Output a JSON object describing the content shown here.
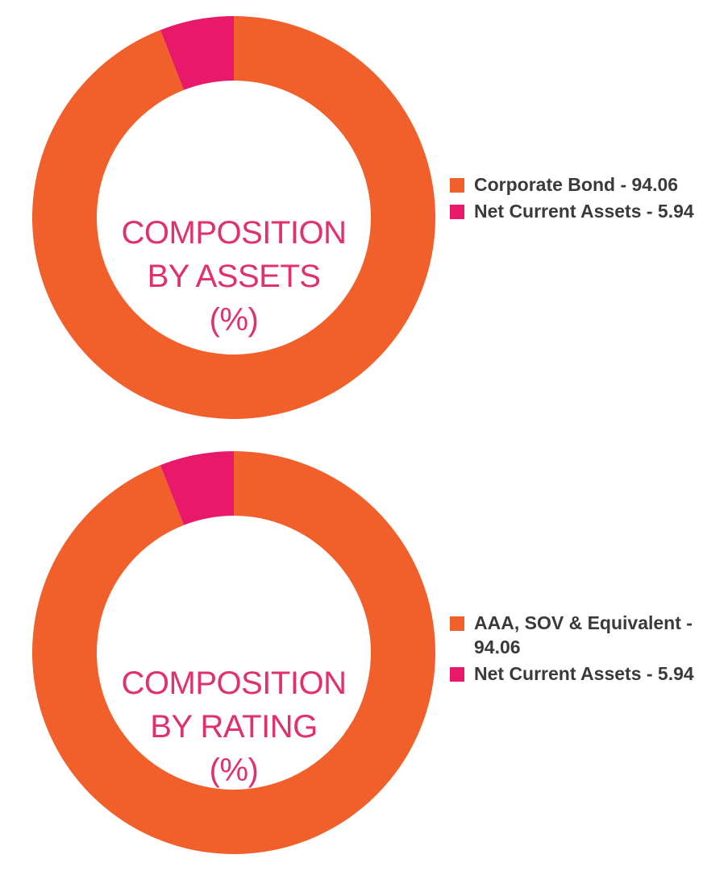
{
  "chart_data": [
    {
      "type": "pie",
      "donut": true,
      "title_lines": [
        "COMPOSITION",
        "BY ASSETS",
        "(%)"
      ],
      "categories": [
        "Corporate Bond",
        "Net Current Assets"
      ],
      "values": [
        94.06,
        5.94
      ],
      "legend_labels": [
        "Corporate Bond - 94.06",
        "Net Current Assets - 5.94"
      ],
      "colors": [
        "#f15f2a",
        "#e8196a"
      ],
      "legend_position": "right"
    },
    {
      "type": "pie",
      "donut": true,
      "title_lines": [
        "COMPOSITION",
        "BY RATING",
        "(%)"
      ],
      "categories": [
        "AAA, SOV & Equivalent",
        "Net Current Assets"
      ],
      "values": [
        94.06,
        5.94
      ],
      "legend_labels": [
        "AAA, SOV & Equivalent - 94.06",
        "Net Current Assets - 5.94"
      ],
      "colors": [
        "#f15f2a",
        "#e8196a"
      ],
      "legend_position": "right"
    }
  ]
}
